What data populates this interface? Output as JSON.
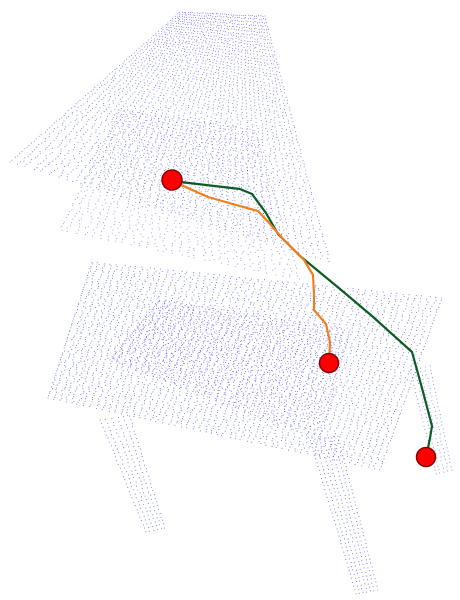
{
  "figure": {
    "description_kind": "point-cloud-chair-with-geodesic-paths",
    "background_color": "#ffffff",
    "point_color": "#1a1aff",
    "marker_fill": "#ff0000",
    "marker_stroke": "#8b0000",
    "paths": [
      {
        "id": "path-green",
        "color": "#0b5d1e"
      },
      {
        "id": "path-orange",
        "color": "#f07f1a"
      }
    ],
    "markers": [
      {
        "id": "marker-source"
      },
      {
        "id": "marker-target-middle"
      },
      {
        "id": "marker-target-right"
      }
    ]
  }
}
